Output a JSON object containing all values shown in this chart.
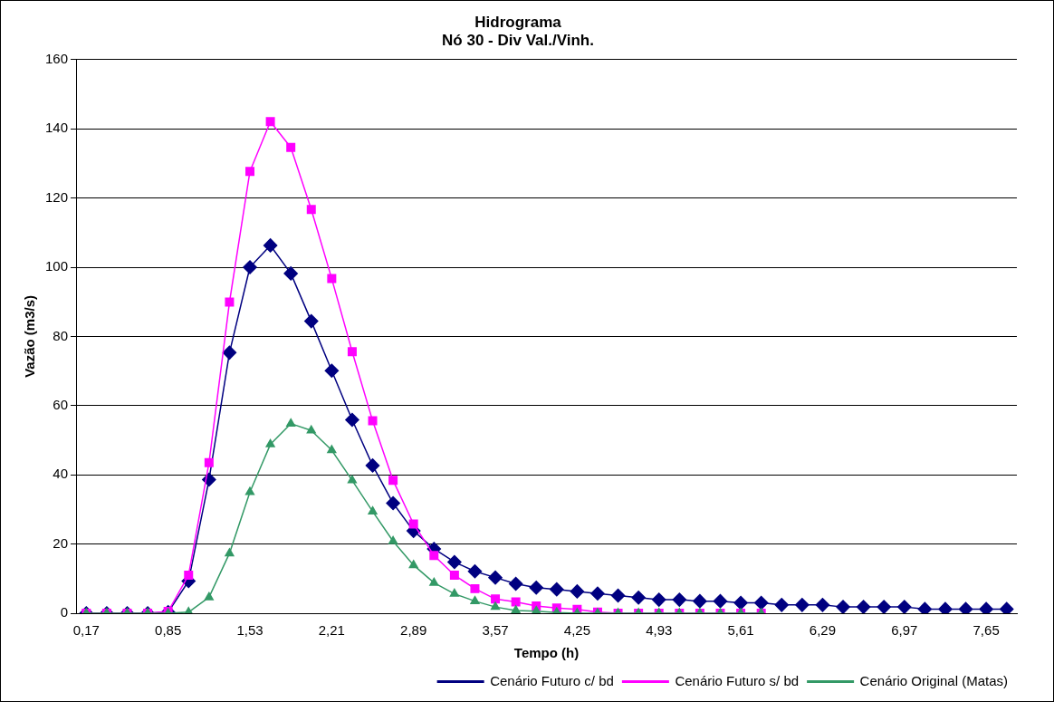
{
  "chart_data": {
    "type": "line",
    "title": "Hidrograma",
    "subtitle": "Nó 30 - Div Val./Vinh.",
    "xlabel": "Tempo (h)",
    "ylabel": "Vazão (m3/s)",
    "categories": [
      "0,17",
      null,
      null,
      null,
      "0,85",
      null,
      null,
      null,
      "1,53",
      null,
      null,
      null,
      "2,21",
      null,
      null,
      null,
      "2,89",
      null,
      null,
      null,
      "3,57",
      null,
      null,
      null,
      "4,25",
      null,
      null,
      null,
      "4,93",
      null,
      null,
      null,
      "5,61",
      null,
      null,
      null,
      "6,29",
      null,
      null,
      null,
      "6,97",
      null,
      null,
      null,
      "7,65",
      null
    ],
    "series": [
      {
        "name": "Cenário Futuro c/ bd",
        "color": "#000080",
        "marker": "diamond",
        "values": [
          0,
          0,
          0,
          0,
          0.3,
          9.3,
          38.6,
          75.3,
          100,
          106.3,
          98.2,
          84.4,
          70.1,
          55.9,
          42.7,
          31.8,
          23.8,
          18.6,
          14.8,
          12.1,
          10.3,
          8.5,
          7.4,
          6.9,
          6.3,
          5.7,
          5.1,
          4.5,
          3.9,
          3.9,
          3.5,
          3.5,
          3,
          3,
          2.4,
          2.4,
          2.4,
          1.8,
          1.8,
          1.8,
          1.8,
          1.2,
          1.2,
          1.2,
          1.2,
          1.2
        ]
      },
      {
        "name": "Cenário Futuro s/ bd",
        "color": "#ff00ff",
        "marker": "square",
        "values": [
          0,
          0,
          0,
          0,
          0.5,
          11,
          43.5,
          89.9,
          127.7,
          142.1,
          134.6,
          116.7,
          96.7,
          75.6,
          55.6,
          38.4,
          25.8,
          16.7,
          11,
          7.1,
          4.1,
          3.3,
          2.1,
          1.5,
          1.1,
          0.3,
          0,
          0,
          0,
          0,
          0,
          0,
          0,
          0,
          null,
          null,
          null,
          null,
          null,
          null,
          null,
          null,
          null,
          null,
          null,
          null
        ]
      },
      {
        "name": "Cenário Original (Matas)",
        "color": "#339966",
        "marker": "triangle",
        "values": [
          0,
          0,
          0,
          0,
          0,
          0.3,
          4.6,
          17.3,
          35,
          48.8,
          54.8,
          52.8,
          47.1,
          38.4,
          29.4,
          20.8,
          13.9,
          8.8,
          5.6,
          3.5,
          1.8,
          0.8,
          0.6,
          0.2,
          0,
          0,
          0,
          0,
          0,
          0,
          0,
          0,
          0,
          0,
          null,
          null,
          null,
          null,
          null,
          null,
          null,
          null,
          null,
          null,
          null,
          null
        ]
      }
    ],
    "ylim": [
      0,
      160
    ],
    "yticks": [
      0,
      20,
      40,
      60,
      80,
      100,
      120,
      140,
      160
    ],
    "grid": "y",
    "legend": "bottom right",
    "line_style": "solid"
  }
}
